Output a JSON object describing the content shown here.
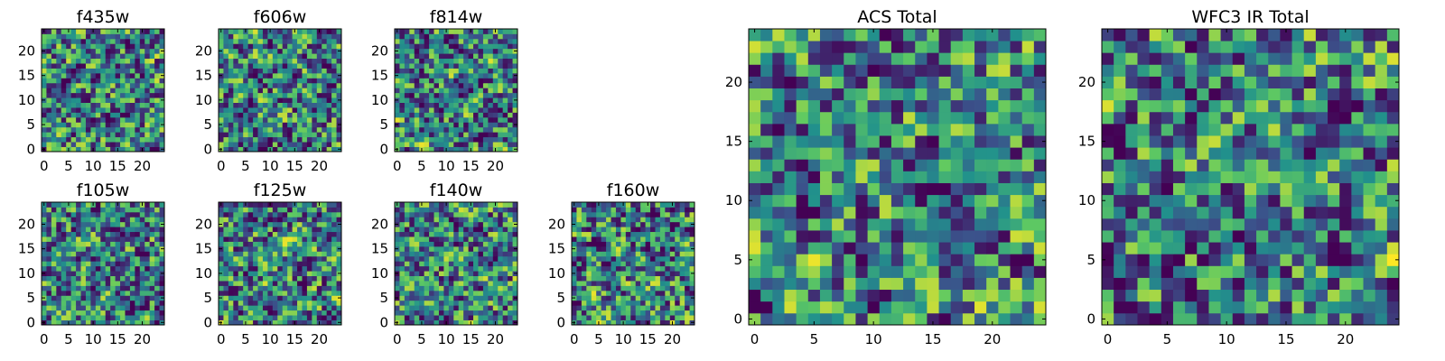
{
  "chart_data": [
    {
      "type": "heatmap",
      "title": "f435w",
      "pattern_seed": 11,
      "grid_size": [
        25,
        25
      ],
      "xlim": [
        0,
        24
      ],
      "ylim": [
        0,
        24
      ],
      "x_ticks": [
        0,
        5,
        10,
        15,
        20
      ],
      "y_ticks": [
        0,
        5,
        10,
        15,
        20
      ],
      "colormap": "viridis",
      "value_range": [
        0,
        1
      ]
    },
    {
      "type": "heatmap",
      "title": "f606w",
      "pattern_seed": 23,
      "grid_size": [
        25,
        25
      ],
      "xlim": [
        0,
        24
      ],
      "ylim": [
        0,
        24
      ],
      "x_ticks": [
        0,
        5,
        10,
        15,
        20
      ],
      "y_ticks": [
        0,
        5,
        10,
        15,
        20
      ],
      "colormap": "viridis",
      "value_range": [
        0,
        1
      ]
    },
    {
      "type": "heatmap",
      "title": "f814w",
      "pattern_seed": 37,
      "grid_size": [
        25,
        25
      ],
      "xlim": [
        0,
        24
      ],
      "ylim": [
        0,
        24
      ],
      "x_ticks": [
        0,
        5,
        10,
        15,
        20
      ],
      "y_ticks": [
        0,
        5,
        10,
        15,
        20
      ],
      "colormap": "viridis",
      "value_range": [
        0,
        1
      ]
    },
    {
      "type": "heatmap",
      "title": "f105w",
      "pattern_seed": 41,
      "grid_size": [
        25,
        25
      ],
      "xlim": [
        0,
        24
      ],
      "ylim": [
        0,
        24
      ],
      "x_ticks": [
        0,
        5,
        10,
        15,
        20
      ],
      "y_ticks": [
        0,
        5,
        10,
        15,
        20
      ],
      "colormap": "viridis",
      "value_range": [
        0,
        1
      ]
    },
    {
      "type": "heatmap",
      "title": "f125w",
      "pattern_seed": 53,
      "grid_size": [
        25,
        25
      ],
      "xlim": [
        0,
        24
      ],
      "ylim": [
        0,
        24
      ],
      "x_ticks": [
        0,
        5,
        10,
        15,
        20
      ],
      "y_ticks": [
        0,
        5,
        10,
        15,
        20
      ],
      "colormap": "viridis",
      "value_range": [
        0,
        1
      ]
    },
    {
      "type": "heatmap",
      "title": "f140w",
      "pattern_seed": 67,
      "grid_size": [
        25,
        25
      ],
      "xlim": [
        0,
        24
      ],
      "ylim": [
        0,
        24
      ],
      "x_ticks": [
        0,
        5,
        10,
        15,
        20
      ],
      "y_ticks": [
        0,
        5,
        10,
        15,
        20
      ],
      "colormap": "viridis",
      "value_range": [
        0,
        1
      ]
    },
    {
      "type": "heatmap",
      "title": "f160w",
      "pattern_seed": 79,
      "grid_size": [
        25,
        25
      ],
      "xlim": [
        0,
        24
      ],
      "ylim": [
        0,
        24
      ],
      "x_ticks": [
        0,
        5,
        10,
        15,
        20
      ],
      "y_ticks": [
        0,
        5,
        10,
        15,
        20
      ],
      "colormap": "viridis",
      "value_range": [
        0,
        1
      ]
    },
    {
      "type": "heatmap",
      "title": "ACS Total",
      "pattern_seed": 83,
      "grid_size": [
        25,
        25
      ],
      "xlim": [
        0,
        24
      ],
      "ylim": [
        0,
        24
      ],
      "x_ticks": [
        0,
        5,
        10,
        15,
        20
      ],
      "y_ticks": [
        0,
        5,
        10,
        15,
        20
      ],
      "colormap": "viridis",
      "value_range": [
        0,
        1
      ]
    },
    {
      "type": "heatmap",
      "title": "WFC3 IR Total",
      "pattern_seed": 97,
      "grid_size": [
        25,
        25
      ],
      "xlim": [
        0,
        24
      ],
      "ylim": [
        0,
        24
      ],
      "x_ticks": [
        0,
        5,
        10,
        15,
        20
      ],
      "y_ticks": [
        0,
        5,
        10,
        15,
        20
      ],
      "colormap": "viridis",
      "value_range": [
        0,
        1
      ]
    }
  ],
  "colors": {
    "viridis_stops": [
      "#440154",
      "#3b528b",
      "#21918c",
      "#5ec962",
      "#fde725"
    ],
    "frame": "#000000",
    "background": "#ffffff"
  }
}
